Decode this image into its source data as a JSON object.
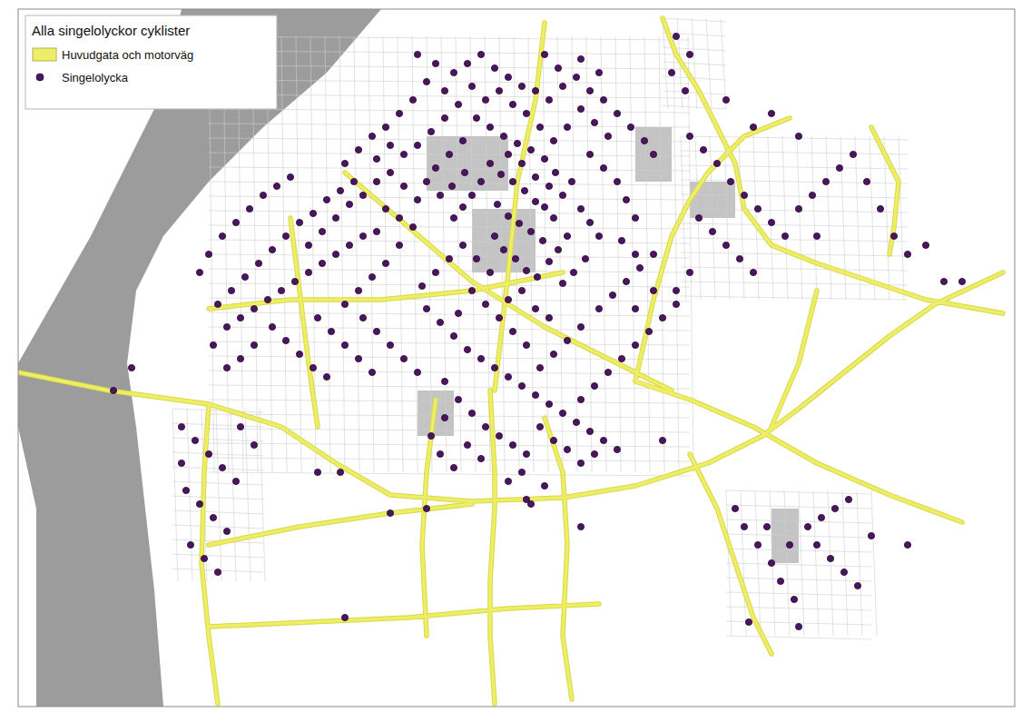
{
  "chart_data": {
    "type": "scatter",
    "title": "Alla singelolyckor cyklister",
    "legend": "top-left",
    "tick_labels": false,
    "xlim": [
      20,
      1118
    ],
    "ylim": [
      778,
      10
    ],
    "series": [
      {
        "name": "Huvudgata och motorväg",
        "type": "line",
        "color": "#eeee66",
        "line_style": "solid",
        "x": [
          20,
          120,
          230,
          310,
          370,
          430,
          520,
          620,
          700,
          780,
          840,
          880,
          930,
          980,
          1030,
          1105,
          null,
          230,
          225,
          222,
          230,
          240,
          null,
          540,
          545,
          545,
          540,
          540,
          545,
          null,
          480,
          470,
          465,
          470,
          null,
          700,
          760,
          830,
          900,
          980,
          1060,
          null,
          730,
          745,
          770,
          790,
          810,
          820,
          850,
          900,
          960,
          1020,
          1105,
          null,
          960,
          990,
          985,
          980,
          null,
          870,
          820,
          780,
          760,
          740,
          null,
          600,
          590,
          570,
          560,
          545,
          null,
          380,
          450,
          520,
          600,
          680,
          740,
          null,
          230,
          320,
          420,
          520,
          620,
          null,
          320,
          330,
          340,
          350,
          null,
          230,
          330,
          430,
          520,
          null,
          230,
          340,
          450,
          560,
          660,
          null,
          760,
          790,
          810,
          830,
          850,
          null,
          850,
          880,
          900,
          null,
          600,
          620,
          625,
          620,
          630,
          null,
          740,
          720,
          700
        ],
        "values": [
          410,
          430,
          445,
          470,
          510,
          545,
          552,
          548,
          535,
          510,
          480,
          450,
          410,
          370,
          335,
          300,
          null,
          445,
          520,
          620,
          700,
          775,
          null,
          430,
          520,
          560,
          640,
          700,
          775,
          null,
          440,
          520,
          600,
          700,
          null,
          420,
          440,
          470,
          510,
          545,
          575,
          null,
          20,
          60,
          100,
          140,
          180,
          230,
          270,
          290,
          310,
          330,
          345,
          null,
          140,
          200,
          250,
          280,
          null,
          130,
          150,
          190,
          220,
          260,
          null,
          25,
          110,
          200,
          300,
          430,
          null,
          190,
          250,
          310,
          360,
          400,
          430,
          null,
          340,
          330,
          330,
          320,
          300,
          null,
          240,
          320,
          400,
          470,
          null,
          600,
          580,
          565,
          555,
          null,
          690,
          685,
          680,
          670,
          665,
          null,
          500,
          560,
          620,
          680,
          720,
          null,
          470,
          400,
          320,
          null,
          460,
          520,
          600,
          700,
          770,
          null,
          260,
          330,
          420
        ]
      },
      {
        "name": "Singelolycka",
        "type": "scatter",
        "color": "#4a165e",
        "marker": "circle",
        "x": [
          540,
          552,
          565,
          578,
          590,
          548,
          560,
          572,
          585,
          598,
          530,
          520,
          510,
          500,
          545,
          555,
          568,
          580,
          592,
          605,
          615,
          625,
          610,
          600,
          620,
          630,
          612,
          600,
          585,
          570,
          555,
          540,
          525,
          510,
          495,
          480,
          470,
          485,
          498,
          512,
          560,
          575,
          590,
          605,
          640,
          650,
          660,
          645,
          632,
          620,
          575,
          560,
          590,
          605,
          540,
          525,
          510,
          495,
          480,
          465,
          455,
          440,
          425,
          440,
          425,
          410,
          395,
          380,
          460,
          445,
          430,
          415,
          400,
          385,
          370,
          355,
          340,
          650,
          665,
          680,
          690,
          700,
          670,
          655,
          640,
          625,
          610,
          595,
          580,
          565,
          550,
          535,
          520,
          505,
          490,
          475,
          460,
          445,
          430,
          415,
          460,
          480,
          470,
          490,
          500,
          515,
          530,
          545,
          560,
          575,
          590,
          605,
          620,
          635,
          650,
          665,
          680,
          695,
          710,
          720,
          455,
          440,
          425,
          410,
          395,
          380,
          600,
          615,
          640,
          660,
          390,
          375,
          360,
          345,
          330,
          315,
          300,
          285,
          270,
          255,
          240,
          250,
          265,
          280,
          295,
          310,
          325,
          340,
          355,
          370,
          385,
          400,
          415,
          300,
          315,
          330,
          345,
          360,
          280,
          265,
          250,
          235,
          220,
          230,
          245,
          260,
          275,
          290,
          305,
          320,
          350,
          365,
          380,
          395,
          410,
          400,
          415,
          430,
          445,
          460,
          470,
          485,
          500,
          515,
          530,
          545,
          560,
          575,
          590,
          605,
          620,
          635,
          650,
          665,
          680,
          490,
          505,
          520,
          535,
          550,
          565,
          580,
          595,
          610,
          625,
          640,
          655,
          670,
          685,
          700,
          715,
          730,
          745,
          660,
          675,
          690,
          705,
          720,
          640,
          625,
          610,
          595,
          580,
          565,
          550,
          535,
          520,
          505,
          490,
          475,
          485,
          500,
          515,
          560,
          575,
          600,
          640,
          655,
          585,
          530,
          760,
          775,
          790,
          805,
          820,
          835,
          850,
          865,
          880,
          895,
          910,
          925,
          940,
          955,
          970,
          985,
          1000,
          1020,
          1040,
          1060,
          770,
          785,
          800,
          815,
          830,
          760,
          745,
          850,
          880,
          900,
          810,
          820,
          835,
          850,
          860,
          875,
          890,
          905,
          920,
          935,
          900,
          915,
          930,
          945,
          880,
          825,
          1000,
          960,
          870,
          845,
          200,
          215,
          230,
          245,
          260,
          205,
          220,
          235,
          250,
          210,
          225,
          240,
          200,
          265,
          280,
          125,
          145,
          350,
          375,
          380,
          745,
          760,
          740,
          755,
          800,
          830,
          700,
          685,
          720,
          700,
          430,
          580,
          470,
          730,
          640
        ],
        "values": [
          180,
          192,
          200,
          210,
          222,
          225,
          238,
          246,
          255,
          265,
          200,
          215,
          228,
          240,
          260,
          275,
          285,
          298,
          305,
          288,
          275,
          260,
          240,
          228,
          215,
          200,
          190,
          175,
          165,
          158,
          150,
          140,
          130,
          155,
          170,
          185,
          200,
          215,
          205,
          190,
          170,
          180,
          195,
          205,
          230,
          245,
          260,
          285,
          300,
          312,
          320,
          330,
          340,
          350,
          300,
          285,
          270,
          285,
          300,
          315,
          250,
          240,
          230,
          270,
          290,
          305,
          320,
          335,
          220,
          205,
          190,
          200,
          215,
          225,
          240,
          255,
          270,
          170,
          185,
          200,
          220,
          240,
          150,
          135,
          120,
          140,
          155,
          140,
          125,
          115,
          100,
          110,
          95,
          115,
          130,
          145,
          160,
          170,
          160,
          175,
          60,
          70,
          90,
          100,
          80,
          70,
          60,
          75,
          85,
          95,
          100,
          110,
          95,
          85,
          100,
          110,
          125,
          140,
          155,
          170,
          110,
          125,
          140,
          150,
          165,
          180,
          60,
          75,
          65,
          80,
          200,
          210,
          220,
          235,
          245,
          260,
          275,
          290,
          305,
          320,
          335,
          360,
          350,
          340,
          330,
          320,
          310,
          300,
          290,
          280,
          270,
          260,
          255,
          360,
          375,
          390,
          405,
          415,
          380,
          395,
          405,
          380,
          300,
          280,
          260,
          245,
          230,
          215,
          205,
          195,
          350,
          365,
          380,
          395,
          410,
          350,
          365,
          380,
          395,
          410,
          340,
          355,
          370,
          385,
          395,
          405,
          415,
          425,
          435,
          445,
          455,
          465,
          475,
          485,
          495,
          420,
          440,
          455,
          470,
          480,
          490,
          500,
          470,
          485,
          495,
          440,
          425,
          410,
          395,
          380,
          365,
          350,
          335,
          340,
          325,
          310,
          295,
          280,
          360,
          375,
          390,
          405,
          380,
          365,
          350,
          335,
          320,
          345,
          460,
          480,
          500,
          515,
          490,
          530,
          520,
          535,
          510,
          500,
          555,
          505,
          150,
          165,
          180,
          200,
          215,
          230,
          245,
          260,
          230,
          215,
          200,
          185,
          170,
          200,
          230,
          260,
          280,
          270,
          310,
          310,
          240,
          255,
          270,
          285,
          300,
          300,
          320,
          125,
          150,
          260,
          560,
          580,
          600,
          620,
          640,
          660,
          580,
          570,
          560,
          550,
          600,
          615,
          630,
          645,
          690,
          685,
          600,
          590,
          600,
          580,
          470,
          485,
          500,
          515,
          530,
          540,
          555,
          570,
          585,
          600,
          615,
          630,
          510,
          470,
          490,
          430,
          405,
          520,
          520,
          680,
          40,
          60,
          80,
          100,
          110,
          140,
          280,
          265,
          320,
          340,
          565,
          550,
          560,
          485,
          580
        ]
      }
    ]
  }
}
